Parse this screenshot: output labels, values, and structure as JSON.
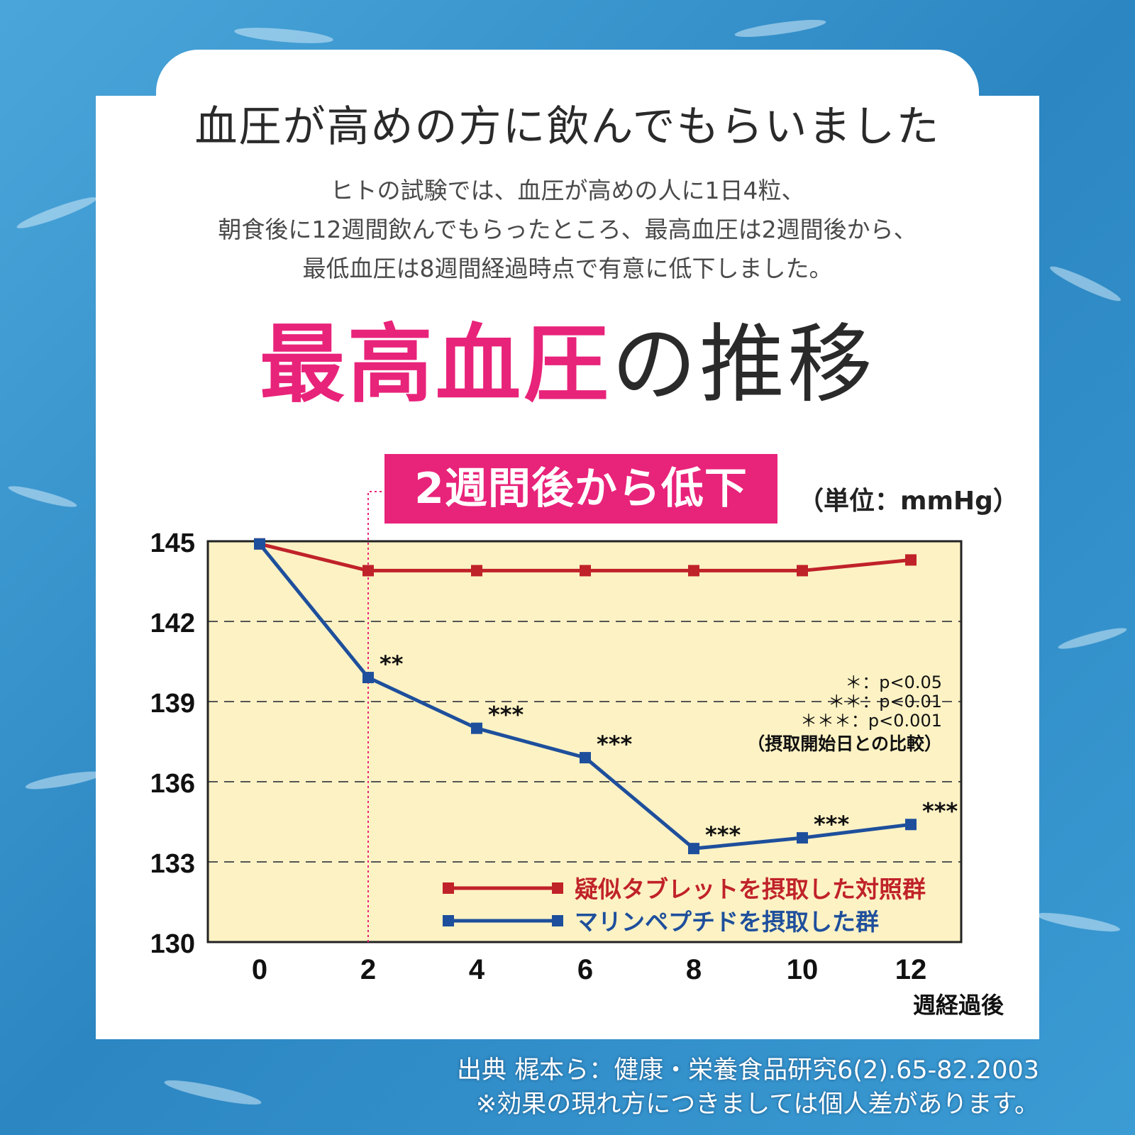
{
  "page": {
    "headline": "血圧が高めの方に飲んでもらいました",
    "description_lines": [
      "ヒトの試験では、血圧が高めの人に1日4粒、",
      "朝食後に12週間飲んでもらったところ、最高血圧は2週間後から、",
      "最低血圧は8週間経過時点で有意に低下しました。"
    ],
    "title_highlight": "最高血圧",
    "title_rest": "の推移",
    "badge": "2週間後から低下",
    "unit": "（単位：mmHg）",
    "source_lines": [
      "出典 梶本ら：健康・栄養食品研究6(2).65-82.2003",
      "※効果の現れ方につきましては個人差があります。"
    ],
    "colors": {
      "accent_pink": "#e8237a",
      "control_red": "#c0222a",
      "treatment_blue": "#1e4f9c",
      "plot_bg": "#fdf2c4"
    }
  },
  "chart_data": {
    "type": "line",
    "x": [
      0,
      2,
      4,
      6,
      8,
      10,
      12
    ],
    "xlabel": "週経過後",
    "ylim": [
      130,
      145
    ],
    "yticks": [
      130,
      133,
      136,
      139,
      142,
      145
    ],
    "grid": "horizontal dashed",
    "series": [
      {
        "name": "疑似タブレットを摂取した対照群",
        "color": "#c0222a",
        "values": [
          144.9,
          143.9,
          143.9,
          143.9,
          143.9,
          143.9,
          144.3
        ]
      },
      {
        "name": "マリンペプチドを摂取した群",
        "color": "#1e4f9c",
        "values": [
          144.9,
          139.9,
          138.0,
          136.9,
          133.5,
          133.9,
          134.4
        ],
        "significance": [
          "",
          "**",
          "***",
          "***",
          "***",
          "***",
          "***"
        ]
      }
    ],
    "significance_legend": [
      "＊：p<0.05",
      "＊＊：p<0.01",
      "＊＊＊：p<0.001",
      "（摂取開始日との比較）"
    ],
    "annotation": {
      "x": 2,
      "style": "dotted vertical line",
      "color": "#e8237a"
    },
    "legend_position": "bottom-right"
  }
}
